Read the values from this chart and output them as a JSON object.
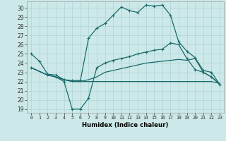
{
  "xlabel": "Humidex (Indice chaleur)",
  "bg_color": "#cce8e8",
  "line_color": "#1a6b6b",
  "grid_color": "#add4d4",
  "xlim_min": -0.5,
  "xlim_max": 23.5,
  "ylim_min": 18.6,
  "ylim_max": 30.7,
  "yticks": [
    19,
    20,
    21,
    22,
    23,
    24,
    25,
    26,
    27,
    28,
    29,
    30
  ],
  "xticks": [
    0,
    1,
    2,
    3,
    4,
    5,
    6,
    7,
    8,
    9,
    10,
    11,
    12,
    13,
    14,
    15,
    16,
    17,
    18,
    19,
    20,
    21,
    22,
    23
  ],
  "line1_x": [
    0,
    1,
    2,
    3,
    4,
    5,
    6,
    7,
    8,
    9,
    10,
    11,
    12,
    13,
    14,
    15,
    16,
    17,
    18,
    19,
    20,
    21,
    22,
    23
  ],
  "line1_y": [
    25.0,
    24.2,
    22.8,
    22.7,
    22.2,
    22.1,
    22.1,
    26.7,
    27.8,
    28.3,
    29.2,
    30.1,
    29.7,
    29.5,
    30.3,
    30.2,
    30.3,
    29.2,
    26.3,
    25.3,
    24.6,
    23.2,
    23.0,
    21.7
  ],
  "line2_x": [
    0,
    2,
    3,
    4,
    5,
    6,
    7,
    8,
    9,
    10,
    11,
    12,
    13,
    14,
    15,
    16,
    17,
    18,
    19,
    20,
    21,
    22,
    23
  ],
  "line2_y": [
    23.5,
    22.7,
    22.5,
    22.0,
    19.0,
    19.0,
    20.2,
    23.5,
    24.0,
    24.3,
    24.5,
    24.7,
    25.0,
    25.2,
    25.4,
    25.5,
    26.2,
    26.0,
    24.5,
    23.3,
    23.0,
    22.5,
    21.7
  ],
  "line3_x": [
    0,
    2,
    3,
    4,
    5,
    6,
    7,
    8,
    9,
    10,
    11,
    12,
    13,
    14,
    15,
    16,
    17,
    18,
    19,
    20,
    21,
    22,
    23
  ],
  "line3_y": [
    23.5,
    22.7,
    22.5,
    22.2,
    22.0,
    22.0,
    22.2,
    22.5,
    23.0,
    23.2,
    23.4,
    23.6,
    23.8,
    24.0,
    24.1,
    24.2,
    24.3,
    24.4,
    24.3,
    24.5,
    23.0,
    22.5,
    21.7
  ],
  "line4_x": [
    0,
    2,
    3,
    4,
    5,
    6,
    7,
    8,
    9,
    10,
    11,
    12,
    13,
    14,
    15,
    16,
    17,
    18,
    19,
    20,
    21,
    22,
    23
  ],
  "line4_y": [
    23.5,
    22.7,
    22.5,
    22.2,
    22.0,
    22.0,
    22.0,
    22.0,
    22.0,
    22.0,
    22.0,
    22.0,
    22.0,
    22.0,
    22.0,
    22.0,
    22.0,
    22.0,
    22.0,
    22.0,
    22.0,
    22.0,
    21.8
  ]
}
